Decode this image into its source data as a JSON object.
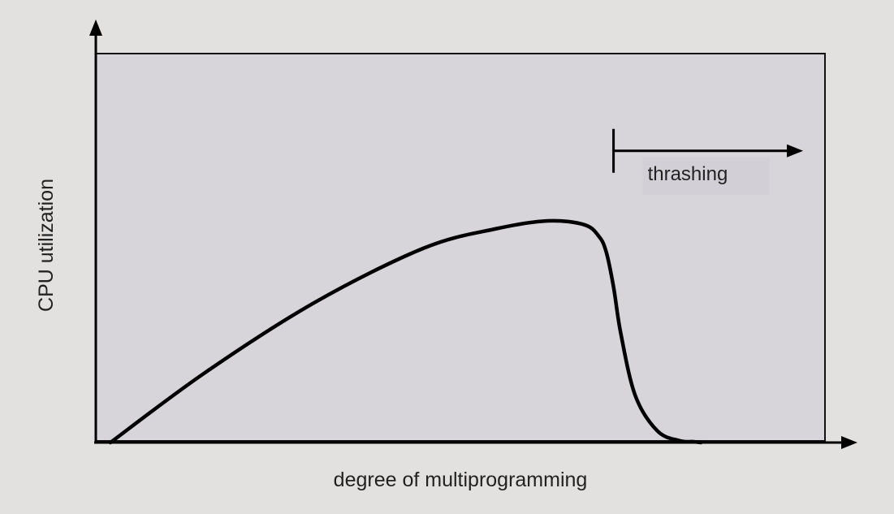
{
  "chart_data": {
    "type": "line",
    "title": "",
    "xlabel": "degree of multiprogramming",
    "ylabel": "CPU utilization",
    "grid": false,
    "legend": "none",
    "x_ticks": [],
    "y_ticks": [],
    "xlim": [
      0,
      100
    ],
    "ylim": [
      0,
      100
    ],
    "series": [
      {
        "color": "#000000",
        "x": [
          2,
          15,
          30,
          45,
          55,
          62,
          67,
          69,
          70,
          71,
          72,
          74,
          77,
          80,
          82,
          83
        ],
        "y": [
          0,
          18,
          36,
          50,
          55,
          57,
          56,
          53,
          49,
          40,
          28,
          12,
          3,
          0.5,
          0.2,
          0
        ]
      }
    ],
    "annotations": [
      {
        "text": "thrashing",
        "x_start": 71,
        "x_end": 97,
        "y": 75
      }
    ],
    "colors": {
      "page": "#e2e1df",
      "plot_area": "#d7d4da",
      "label_box": "#d2d0d6",
      "line": "#000000"
    }
  }
}
